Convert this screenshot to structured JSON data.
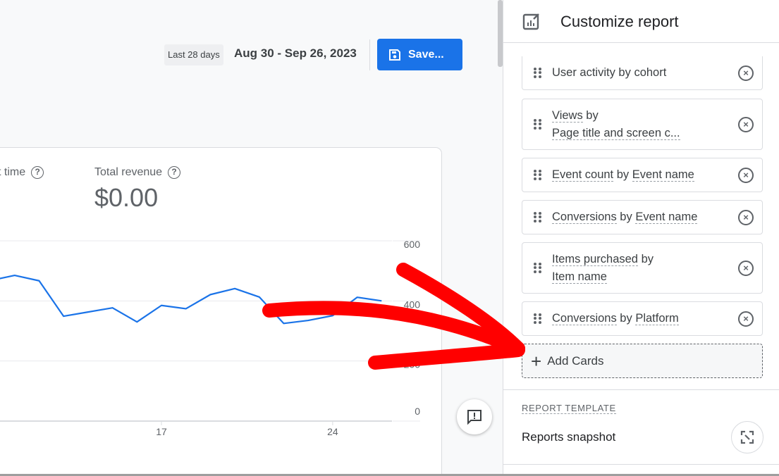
{
  "header": {
    "range_label": "Last 28 days",
    "range_value": "Aug 30 - Sep 26, 2023",
    "save_label": "Save..."
  },
  "metrics": [
    {
      "label": "t time"
    },
    {
      "label": "Total revenue",
      "value": "$0.00"
    }
  ],
  "chart_data": {
    "type": "line",
    "x": [
      11,
      12,
      13,
      14,
      15,
      16,
      17,
      18,
      19,
      20,
      21,
      22,
      23,
      24,
      25,
      26
    ],
    "series": [
      {
        "values": [
          485,
          467,
          349,
          363,
          377,
          330,
          385,
          374,
          421,
          441,
          413,
          325,
          335,
          351,
          412,
          400
        ],
        "color": "#1a73e8"
      }
    ],
    "x_ticks": [
      "17",
      "24"
    ],
    "y_ticks": [
      "600",
      "400",
      "200",
      "0"
    ],
    "ylim": [
      0,
      600
    ],
    "grid": true
  },
  "panel": {
    "title": "Customize report",
    "items": [
      {
        "parts": [
          {
            "t": "User activity by cohort",
            "u": false
          }
        ]
      },
      {
        "parts": [
          {
            "t": "Views",
            "u": true
          },
          {
            "t": " by",
            "u": false
          },
          {
            "t": "\n",
            "u": false
          },
          {
            "t": "Page title and screen c...",
            "u": true
          }
        ]
      },
      {
        "parts": [
          {
            "t": "Event count",
            "u": true
          },
          {
            "t": " by ",
            "u": false
          },
          {
            "t": "Event name",
            "u": true
          }
        ]
      },
      {
        "parts": [
          {
            "t": "Conversions",
            "u": true
          },
          {
            "t": " by ",
            "u": false
          },
          {
            "t": "Event name",
            "u": true
          }
        ]
      },
      {
        "parts": [
          {
            "t": "Items purchased",
            "u": true
          },
          {
            "t": " by",
            "u": false
          },
          {
            "t": "\n",
            "u": false
          },
          {
            "t": "Item name",
            "u": true
          }
        ]
      },
      {
        "parts": [
          {
            "t": "Conversions",
            "u": true
          },
          {
            "t": " by ",
            "u": false
          },
          {
            "t": "Platform",
            "u": true
          }
        ]
      }
    ],
    "add_label": "Add Cards",
    "template_heading": "REPORT TEMPLATE",
    "template_name": "Reports snapshot"
  },
  "colors": {
    "accent": "#1a73e8",
    "annotation": "#ff0000"
  }
}
